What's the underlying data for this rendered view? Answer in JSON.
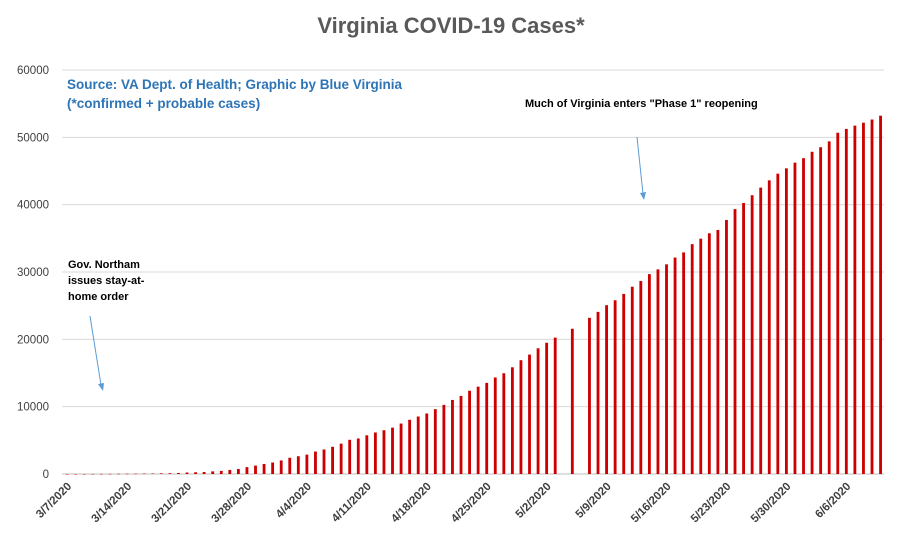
{
  "chart_data": {
    "type": "bar",
    "title": "Virginia COVID-19 Cases*",
    "source_line1": "Source: VA Dept. of Health; Graphic by Blue Virginia",
    "source_line2": "(*confirmed + probable cases)",
    "annotations": {
      "phase1": "Much of Virginia enters \"Phase 1\" reopening",
      "stay_home": [
        "Gov. Northam",
        "issues stay-at-",
        "home order"
      ]
    },
    "bar_color": "#cc0000",
    "grid": true,
    "ylim": [
      0,
      60000
    ],
    "yticks": [
      "0",
      "10000",
      "20000",
      "30000",
      "40000",
      "50000",
      "60000"
    ],
    "xticks": [
      "3/7/2020",
      "3/14/2020",
      "3/21/2020",
      "3/28/2020",
      "4/4/2020",
      "4/11/2020",
      "4/18/2020",
      "4/25/2020",
      "5/2/2020",
      "5/9/2020",
      "5/16/2020",
      "5/23/2020",
      "5/30/2020",
      "6/6/2020"
    ],
    "start_date": "3/7/2020",
    "values": [
      2,
      2,
      8,
      12,
      17,
      22,
      30,
      41,
      45,
      67,
      77,
      99,
      114,
      152,
      219,
      254,
      290,
      391,
      460,
      604,
      739,
      1020,
      1250,
      1484,
      1706,
      2012,
      2407,
      2637,
      2878,
      3333,
      3645,
      4042,
      4509,
      5077,
      5274,
      5747,
      6171,
      6500,
      6889,
      7491,
      8053,
      8537,
      8990,
      9630,
      10266,
      10998,
      11594,
      12366,
      12970,
      13535,
      14339,
      14961,
      15846,
      16901,
      17731,
      18671,
      19492,
      20256,
      null,
      21570,
      null,
      23196,
      24081,
      25070,
      25800,
      26746,
      27813,
      28672,
      29683,
      30388,
      31140,
      32145,
      32908,
      34137,
      34950,
      35749,
      36244,
      37727,
      39342,
      40249,
      41401,
      42533,
      43611,
      44607,
      45398,
      46239,
      46905,
      47856,
      48532,
      49397,
      50681,
      51251,
      51738,
      52177,
      52647,
      53211
    ]
  }
}
